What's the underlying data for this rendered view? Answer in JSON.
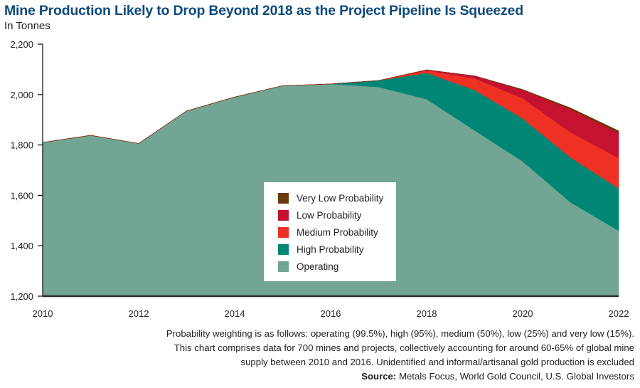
{
  "title": "Mine Production Likely to Drop Beyond 2018 as the Project Pipeline Is Squeezed",
  "subtitle": "In Tonnes",
  "notes": {
    "line1": "Probability weighting is as follows: operating (99.5%), high (95%), medium (50%), low (25%) and very low (15%).",
    "line2": "This chart comprises data for 700 mines and projects, collectively accounting for around 60-65% of global mine",
    "line3": "supply between 2010 and 2016. Unidentified and informal/artisanal gold production is excluded",
    "source_label": "Source:",
    "source_text": " Metals Focus, World Gold Council, U.S. Global Investors"
  },
  "chart_data": {
    "type": "area",
    "stacked": true,
    "title": "Mine Production Likely to Drop Beyond 2018 as the Project Pipeline Is Squeezed",
    "ylabel": "In Tonnes",
    "xlabel": "",
    "x": [
      2010,
      2011,
      2012,
      2013,
      2014,
      2015,
      2016,
      2017,
      2018,
      2019,
      2020,
      2021,
      2022
    ],
    "xlim": [
      2010,
      2022
    ],
    "ylim": [
      1200,
      2200
    ],
    "x_ticks": [
      "2010",
      "2012",
      "2014",
      "2016",
      "2018",
      "2020",
      "2022"
    ],
    "x_tick_values": [
      2010,
      2012,
      2014,
      2016,
      2018,
      2020,
      2022
    ],
    "y_ticks": [
      "1,200",
      "1,400",
      "1,600",
      "1,800",
      "2,000",
      "2,200"
    ],
    "y_tick_values": [
      1200,
      1400,
      1600,
      1800,
      2000,
      2200
    ],
    "grid": false,
    "legend_position": "center",
    "series": [
      {
        "name": "Operating",
        "color": "#72a593",
        "values": [
          1810,
          1838,
          1806,
          1935,
          1990,
          2035,
          2042,
          2030,
          1982,
          1858,
          1735,
          1572,
          1460
        ]
      },
      {
        "name": "High Probability",
        "color": "#008675",
        "values": [
          0,
          0,
          0,
          0,
          0,
          0,
          0,
          26,
          104,
          160,
          170,
          178,
          168
        ]
      },
      {
        "name": "Medium Probability",
        "color": "#ef3124",
        "values": [
          0,
          0,
          0,
          0,
          0,
          0,
          0,
          0,
          10,
          46,
          80,
          100,
          120
        ]
      },
      {
        "name": "Low Probability",
        "color": "#c41230",
        "values": [
          0,
          0,
          0,
          0,
          0,
          0,
          0,
          0,
          2,
          10,
          33,
          92,
          100
        ]
      },
      {
        "name": "Very Low Probability",
        "color": "#6b3a0a",
        "values": [
          0,
          0,
          0,
          0,
          0,
          0,
          0,
          0,
          0,
          0,
          2,
          5,
          8
        ]
      }
    ],
    "legend_order": [
      "Very Low Probability",
      "Low Probability",
      "Medium Probability",
      "High Probability",
      "Operating"
    ]
  }
}
